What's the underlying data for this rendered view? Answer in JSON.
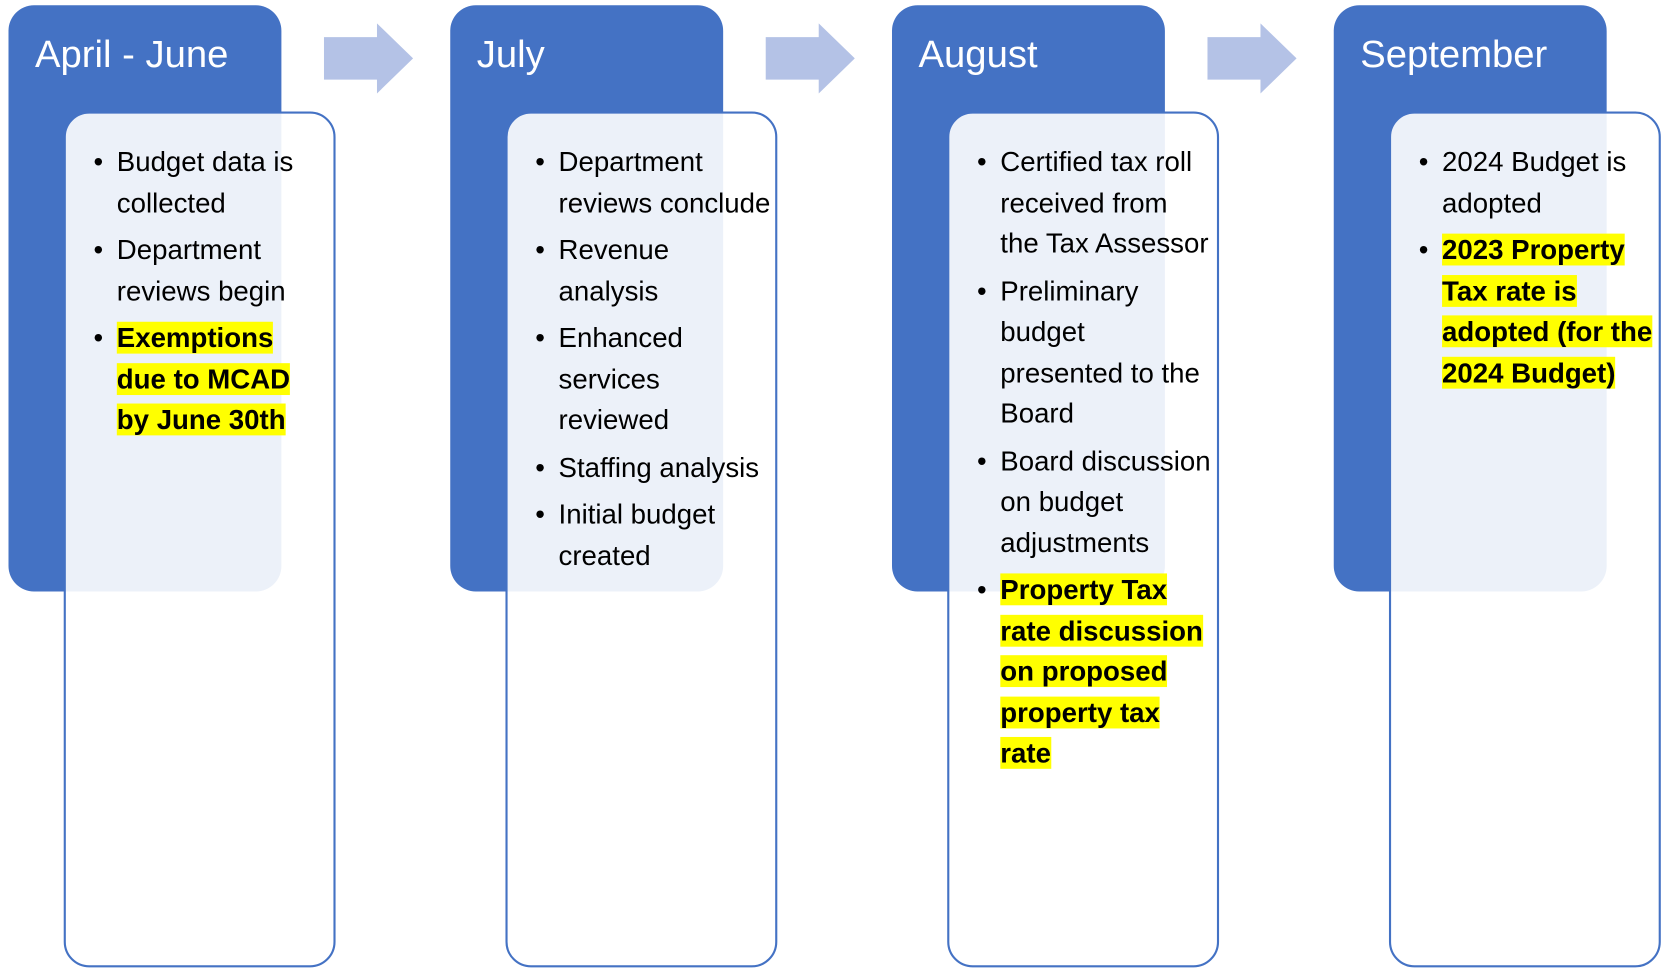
{
  "stages": [
    {
      "title": "April - June",
      "items": [
        {
          "text": "Budget data is collected",
          "highlight": false
        },
        {
          "text": "Department reviews begin",
          "highlight": false
        },
        {
          "text": "Exemptions due to MCAD by June 30th",
          "highlight": true
        }
      ]
    },
    {
      "title": "July",
      "items": [
        {
          "text": "Department reviews conclude",
          "highlight": false
        },
        {
          "text": "Revenue analysis",
          "highlight": false
        },
        {
          "text": "Enhanced services reviewed",
          "highlight": false
        },
        {
          "text": "Staffing analysis",
          "highlight": false
        },
        {
          "text": "Initial budget created",
          "highlight": false
        }
      ]
    },
    {
      "title": "August",
      "items": [
        {
          "text": "Certified tax roll received from the Tax Assessor",
          "highlight": false
        },
        {
          "text": "Preliminary budget presented to the Board",
          "highlight": false
        },
        {
          "text": "Board discussion on budget adjustments",
          "highlight": false
        },
        {
          "text": "Property Tax rate discussion on proposed property tax rate",
          "highlight": true
        }
      ]
    },
    {
      "title": "September",
      "items": [
        {
          "text": "2024 Budget is adopted",
          "highlight": false
        },
        {
          "text": "2023 Property Tax rate is adopted (for the 2024 Budget)",
          "highlight": true
        }
      ]
    }
  ]
}
